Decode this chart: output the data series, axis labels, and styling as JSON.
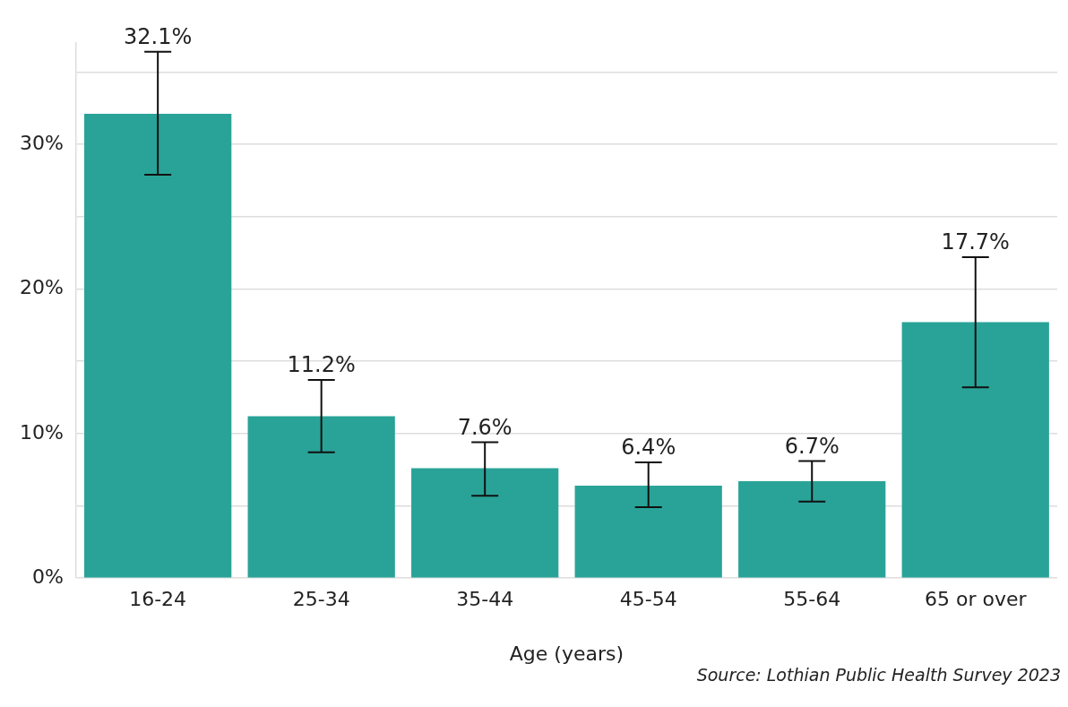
{
  "chart_data": {
    "type": "bar",
    "xlabel": "Age (years)",
    "categories": [
      "16-24",
      "25-34",
      "35-44",
      "45-54",
      "55-64",
      "65 or over"
    ],
    "values": [
      32.1,
      11.2,
      7.6,
      6.4,
      6.7,
      17.7
    ],
    "value_labels": [
      "32.1%",
      "11.2%",
      "7.6%",
      "6.4%",
      "6.7%",
      "17.7%"
    ],
    "errors": [
      [
        27.9,
        36.4
      ],
      [
        8.7,
        13.7
      ],
      [
        5.7,
        9.4
      ],
      [
        4.9,
        8.0
      ],
      [
        5.3,
        8.1
      ],
      [
        13.2,
        22.2
      ]
    ],
    "color": "#29a398",
    "ylim": [
      0,
      37
    ],
    "yticks": [
      {
        "value": 0,
        "label": "0%"
      },
      {
        "value": 5,
        "label": null
      },
      {
        "value": 10,
        "label": "10%"
      },
      {
        "value": 15,
        "label": null
      },
      {
        "value": 20,
        "label": "20%"
      },
      {
        "value": 25,
        "label": null
      },
      {
        "value": 30,
        "label": "30%"
      },
      {
        "value": 35,
        "label": null
      }
    ],
    "grid": "y",
    "legend": false,
    "annotations": [
      "Source: Lothian Public Health Survey 2023"
    ]
  }
}
